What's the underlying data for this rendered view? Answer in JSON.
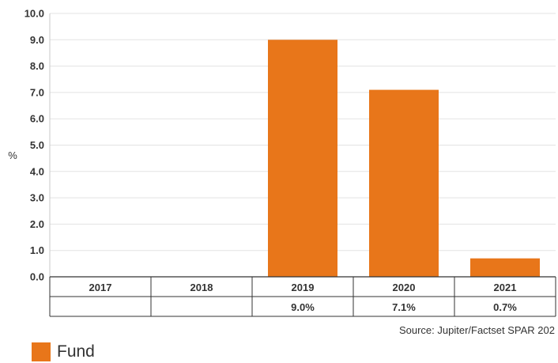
{
  "chart_data": {
    "type": "bar",
    "categories": [
      "2017",
      "2018",
      "2019",
      "2020",
      "2021"
    ],
    "series": [
      {
        "name": "Fund",
        "values": [
          null,
          null,
          9.0,
          7.1,
          0.7
        ],
        "color": "#e8761a"
      }
    ],
    "table_row": [
      "",
      "",
      "9.0%",
      "7.1%",
      "0.7%"
    ],
    "y_ticks": [
      "0.0",
      "1.0",
      "2.0",
      "3.0",
      "4.0",
      "5.0",
      "6.0",
      "7.0",
      "8.0",
      "9.0",
      "10.0"
    ],
    "ylim": [
      0,
      10
    ],
    "ylabel": "%",
    "xlabel": "",
    "title": "",
    "grid": true,
    "legend_position": "bottom-left"
  },
  "source": "Source: Jupiter/Factset SPAR 202",
  "legend": {
    "label": "Fund",
    "color": "#e8761a"
  }
}
